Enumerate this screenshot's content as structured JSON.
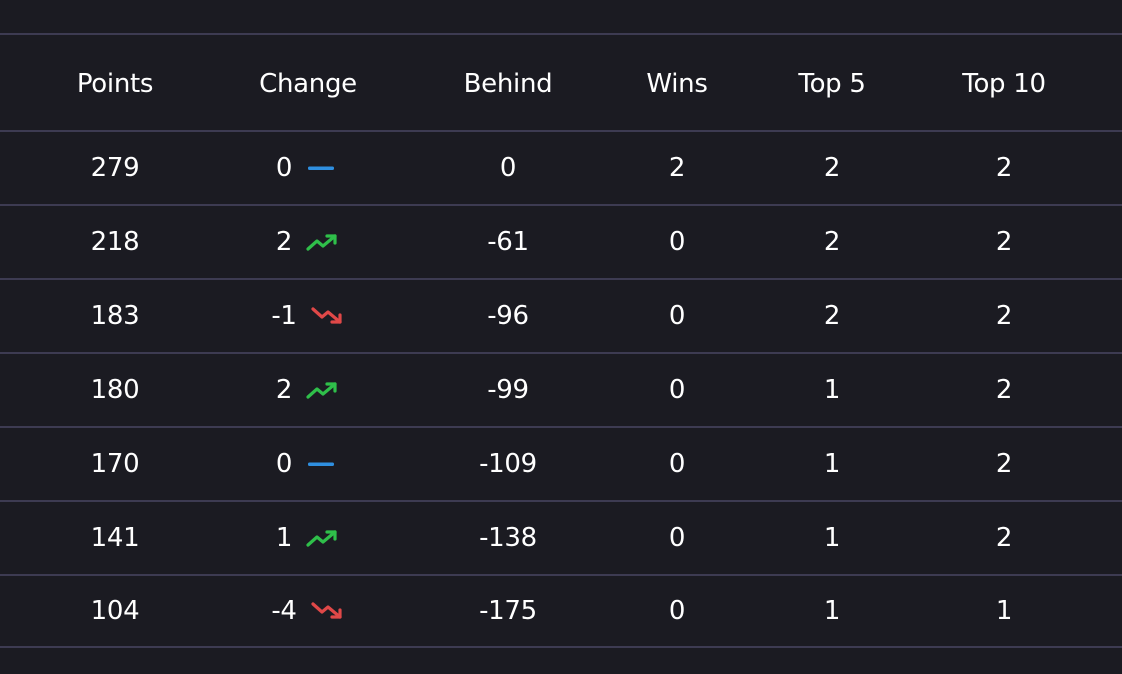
{
  "columns": [
    "Points",
    "Change",
    "Behind",
    "Wins",
    "Top 5",
    "Top 10"
  ],
  "rows": [
    {
      "points": "279",
      "change": "0",
      "trend": "flat",
      "behind": "0",
      "wins": "2",
      "top5": "2",
      "top10": "2"
    },
    {
      "points": "218",
      "change": "2",
      "trend": "up",
      "behind": "-61",
      "wins": "0",
      "top5": "2",
      "top10": "2"
    },
    {
      "points": "183",
      "change": "-1",
      "trend": "down",
      "behind": "-96",
      "wins": "0",
      "top5": "2",
      "top10": "2"
    },
    {
      "points": "180",
      "change": "2",
      "trend": "up",
      "behind": "-99",
      "wins": "0",
      "top5": "1",
      "top10": "2"
    },
    {
      "points": "170",
      "change": "0",
      "trend": "flat",
      "behind": "-109",
      "wins": "0",
      "top5": "1",
      "top10": "2"
    },
    {
      "points": "141",
      "change": "1",
      "trend": "up",
      "behind": "-138",
      "wins": "0",
      "top5": "1",
      "top10": "2"
    },
    {
      "points": "104",
      "change": "-4",
      "trend": "down",
      "behind": "-175",
      "wins": "0",
      "top5": "1",
      "top10": "1"
    }
  ],
  "trend_icons": {
    "flat": "trend-flat-icon",
    "up": "trend-up-icon",
    "down": "trend-down-icon"
  },
  "colors": {
    "background": "#1b1b22",
    "divider": "#3d3b52",
    "text": "#ffffff",
    "flat": "#2f8fe0",
    "up": "#2fbf4a",
    "down": "#e04848"
  }
}
